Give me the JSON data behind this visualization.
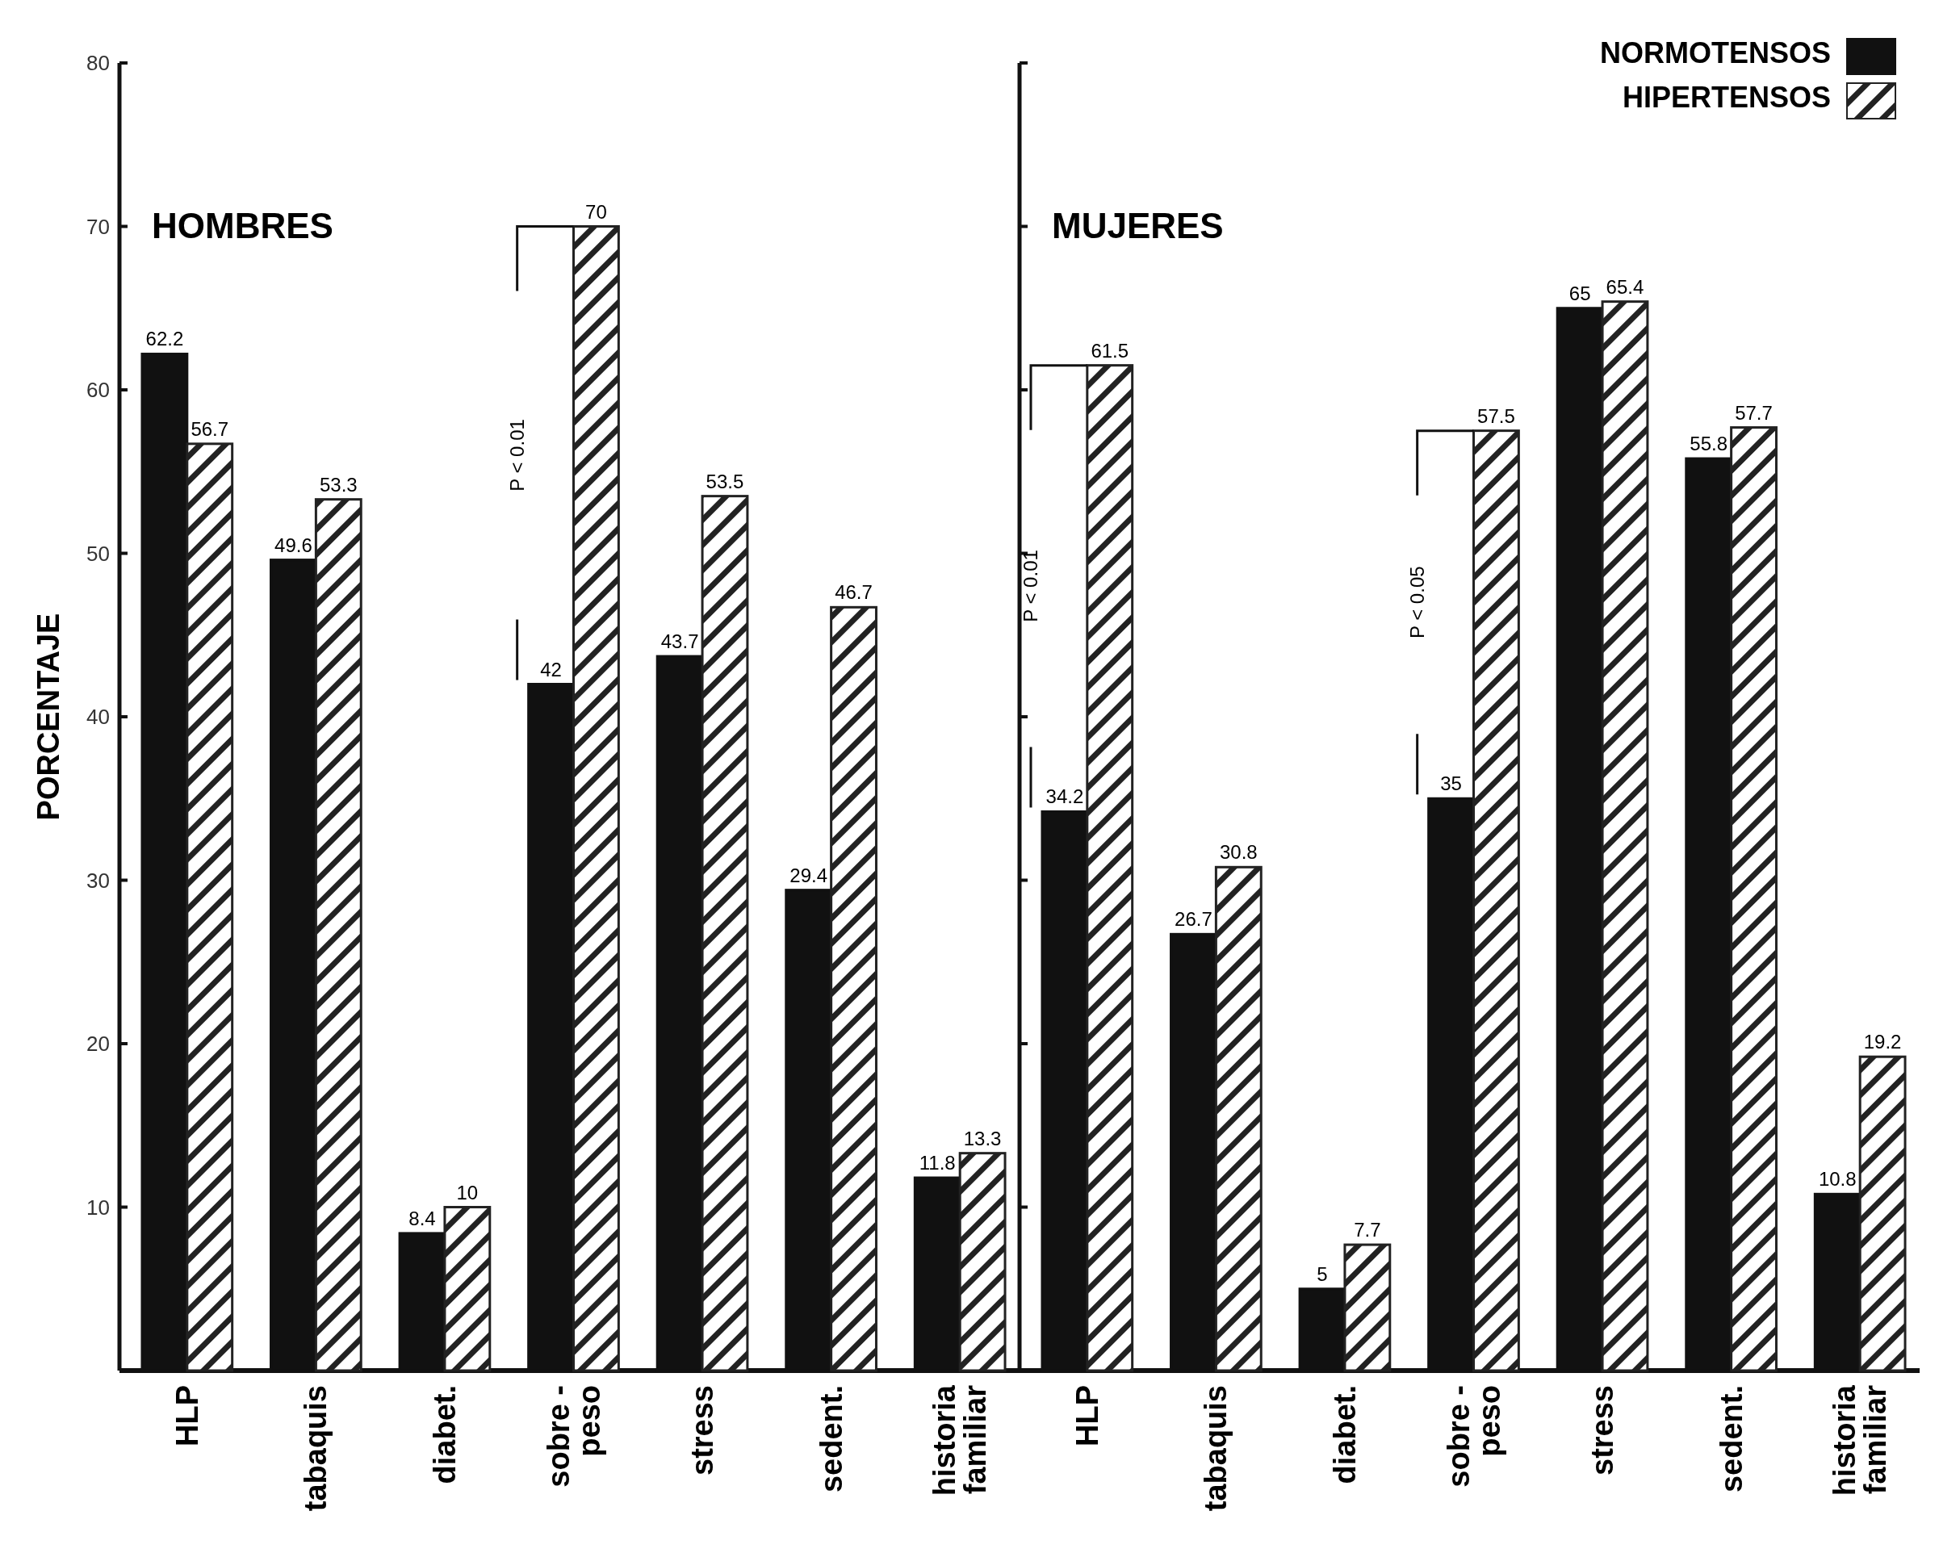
{
  "chart_data": [
    {
      "type": "bar",
      "title": "HOMBRES",
      "ylabel": "PORCENTAJE",
      "categories": [
        "HLP",
        "tabaquis",
        "diabet.",
        "sobre -\npeso",
        "stress",
        "sedent.",
        "historia\nfamiliar"
      ],
      "series": [
        {
          "color": "#111111",
          "values": [
            62.2,
            49.6,
            8.4,
            42,
            43.7,
            29.4,
            11.8
          ]
        },
        {
          "color": "#222222",
          "values": [
            56.7,
            53.3,
            10,
            70,
            53.5,
            46.7,
            13.3
          ]
        }
      ],
      "ylim": [
        0,
        80
      ],
      "yticks": [
        10,
        20,
        30,
        40,
        50,
        60,
        70,
        80
      ],
      "data_labels": true,
      "legend": false,
      "annotations": [
        {
          "text": "P < 0.01",
          "x": "sobre -\npeso",
          "y": 56
        }
      ]
    },
    {
      "type": "bar",
      "title": "MUJERES",
      "categories": [
        "HLP",
        "tabaquis",
        "diabet.",
        "sobre -\npeso",
        "stress",
        "sedent.",
        "historia\nfamiliar"
      ],
      "series": [
        {
          "name": "NORMOTENSOS",
          "color": "#111111",
          "values": [
            34.2,
            26.7,
            5,
            35,
            65,
            55.8,
            10.8
          ]
        },
        {
          "name": "HIPERTENSOS",
          "color": "#222222",
          "values": [
            61.5,
            30.8,
            7.7,
            57.5,
            65.4,
            57.7,
            19.2
          ]
        }
      ],
      "ylim": [
        0,
        80
      ],
      "yticks": [
        10,
        20,
        30,
        40,
        50,
        60,
        70,
        80
      ],
      "tick_labels": "x",
      "data_labels": true,
      "legend": "top right",
      "annotations": [
        {
          "text": "P < 0.01",
          "x": "HLP",
          "y": 48
        },
        {
          "text": "P < 0.05",
          "x": "sobre -\npeso",
          "y": 47
        }
      ]
    }
  ]
}
